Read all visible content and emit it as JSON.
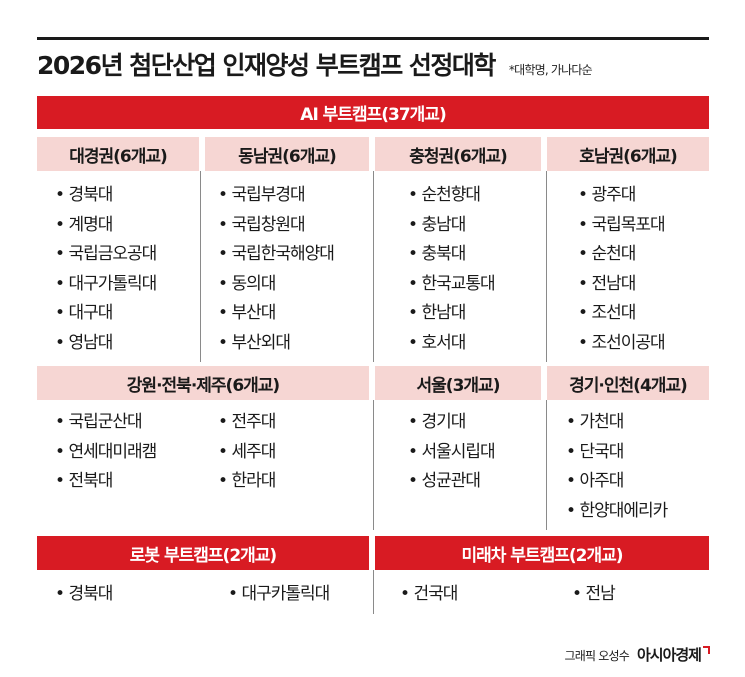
{
  "title": "2026년 첨단산업 인재양성 부트캠프 선정대학",
  "note": "*대학명, 가나다순",
  "ai": {
    "label": "AI 부트캠프(37개교)",
    "regions": [
      {
        "name": "대경권(6개교)",
        "schools": [
          "경북대",
          "계명대",
          "국립금오공대",
          "대구가톨릭대",
          "대구대",
          "영남대"
        ]
      },
      {
        "name": "동남권(6개교)",
        "schools": [
          "국립부경대",
          "국립창원대",
          "국립한국해양대",
          "동의대",
          "부산대",
          "부산외대"
        ]
      },
      {
        "name": "충청권(6개교)",
        "schools": [
          "순천향대",
          "충남대",
          "충북대",
          "한국교통대",
          "한남대",
          "호서대"
        ]
      },
      {
        "name": "호남권(6개교)",
        "schools": [
          "광주대",
          "국립목포대",
          "순천대",
          "전남대",
          "조선대",
          "조선이공대"
        ]
      }
    ],
    "regions2": [
      {
        "name": "강원·전북·제주(6개교)",
        "schools_a": [
          "국립군산대",
          "연세대미래캠",
          "전북대"
        ],
        "schools_b": [
          "전주대",
          "세주대",
          "한라대"
        ]
      },
      {
        "name": "서울(3개교)",
        "schools": [
          "경기대",
          "서울시립대",
          "성균관대"
        ]
      },
      {
        "name": "경기·인천(4개교)",
        "schools": [
          "가천대",
          "단국대",
          "아주대",
          "한양대에리카"
        ]
      }
    ]
  },
  "robot": {
    "label": "로봇 부트캠프(2개교)",
    "schools": [
      "경북대",
      "대구카톨릭대"
    ]
  },
  "car": {
    "label": "미래차 부트캠프(2개교)",
    "schools": [
      "건국대",
      "전남"
    ]
  },
  "credit": {
    "text": "그래픽 오성수",
    "brand": "아시아경제"
  },
  "colors": {
    "accent": "#d81b23",
    "region_bg": "#f6d6d3"
  }
}
